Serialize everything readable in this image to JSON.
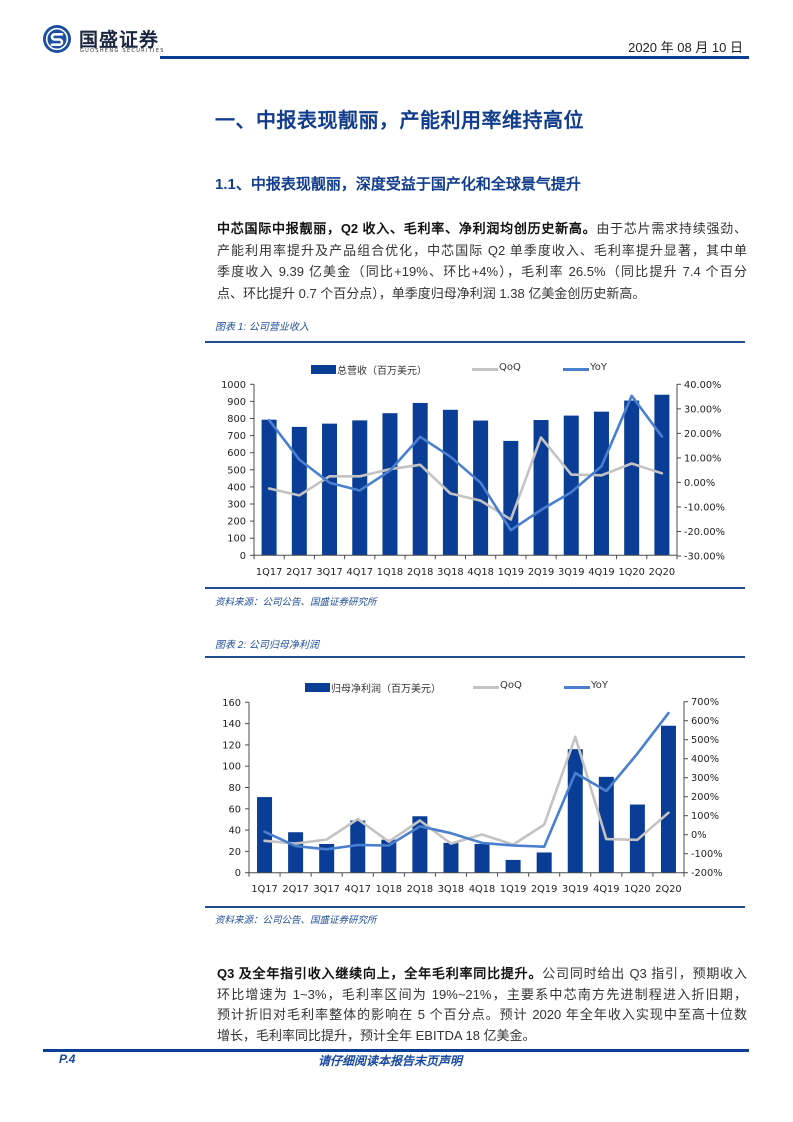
{
  "header": {
    "logo_cn": "国盛证券",
    "logo_en": "GUOSHENG SECURITIES",
    "date": "2020 年 08 月 10 日",
    "brand_color": "#0b3f96"
  },
  "section": {
    "h1": "一、中报表现靓丽，产能利用率维持高位",
    "h2": "1.1、中报表现靓丽，深度受益于国产化和全球景气提升"
  },
  "para1": {
    "lead": "中芯国际中报靓丽，Q2 收入、毛利率、净利润均创历史新高。",
    "lines": [
      "由于芯片需求持续强劲、",
      "产能利用率提升及产品组合优化，中芯国际 Q2 单季度收入、毛利率提升显著，其中单",
      "季度收入 9.39 亿美金（同比+19%、环比+4%），毛利率 26.5%（同比提升 7.4 个百分",
      "点、环比提升 0.7 个百分点），单季度归母净利润 1.38 亿美金创历史新高。"
    ]
  },
  "figure1": {
    "title": "图表 1: 公司营业收入",
    "source": "资料来源：公司公告、国盛证券研究所"
  },
  "figure2": {
    "title": "图表 2: 公司归母净利润",
    "source": "资料来源：公司公告、国盛证券研究所"
  },
  "para2": {
    "lead": "Q3 及全年指引收入继续向上，全年毛利率同比提升。",
    "lines": [
      "公司同时给出 Q3 指引，预期收入",
      "环比增速为 1~3%，毛利率区间为 19%~21%，主要系中芯南方先进制程进入折旧期，",
      "预计折旧对毛利率整体的影响在 5 个百分点。预计 2020 年全年收入实现中至高十位数",
      "增长，毛利率同比提升，预计全年 EBITDA 18 亿美金。"
    ]
  },
  "footer": {
    "page": "P.4",
    "note": "请仔细阅读本报告末页声明"
  },
  "chart_data": [
    {
      "type": "bar+line",
      "title": "图表 1: 公司营业收入",
      "categories": [
        "1Q17",
        "2Q17",
        "3Q17",
        "4Q17",
        "1Q18",
        "2Q18",
        "3Q18",
        "4Q18",
        "1Q19",
        "2Q19",
        "3Q19",
        "4Q19",
        "1Q20",
        "2Q20"
      ],
      "series": [
        {
          "key": "revenue",
          "name": "总营收（百万美元）",
          "axis": "left",
          "type": "bar",
          "color": "#0a3d96",
          "values": [
            793,
            751,
            770,
            789,
            831,
            891,
            851,
            788,
            669,
            791,
            817,
            840,
            905,
            939
          ]
        },
        {
          "key": "qoq",
          "name": "QoQ",
          "axis": "right",
          "type": "line",
          "color": "#c3c3c3",
          "values": [
            -2.5,
            -5.3,
            2.5,
            2.5,
            5.4,
            7.2,
            -4.5,
            -7.4,
            -15.1,
            18.3,
            3.2,
            2.9,
            7.7,
            3.7
          ]
        },
        {
          "key": "yoy",
          "name": "YoY",
          "axis": "right",
          "type": "line",
          "color": "#4a7fcf",
          "values": [
            25.4,
            9.3,
            -0.1,
            -3.3,
            4.8,
            18.6,
            10.5,
            -0.1,
            -19.5,
            -11.2,
            -4.0,
            6.6,
            35.3,
            18.7
          ]
        }
      ],
      "ylim": [
        0,
        1000
      ],
      "yticks": [
        0,
        100,
        200,
        300,
        400,
        500,
        600,
        700,
        800,
        900,
        1000
      ],
      "y2lim": [
        -30,
        40
      ],
      "y2ticks": [
        -30,
        -20,
        -10,
        0,
        10,
        20,
        30,
        40
      ],
      "y2tick_labels": [
        "-30.00%",
        "-20.00%",
        "-10.00%",
        "0.00%",
        "10.00%",
        "20.00%",
        "30.00%",
        "40.00%"
      ],
      "xlabel": "",
      "ylabel": "",
      "legend_position": "top",
      "grid": false
    },
    {
      "type": "bar+line",
      "title": "图表 2: 公司归母净利润",
      "categories": [
        "1Q17",
        "2Q17",
        "3Q17",
        "4Q17",
        "1Q18",
        "2Q18",
        "3Q18",
        "4Q18",
        "1Q19",
        "2Q19",
        "3Q19",
        "4Q19",
        "1Q20",
        "2Q20"
      ],
      "series": [
        {
          "key": "net_profit",
          "name": "归母净利润（百万美元）",
          "axis": "left",
          "type": "bar",
          "color": "#0a3d96",
          "values": [
            71,
            38,
            27,
            49,
            31,
            53,
            28,
            27,
            12,
            19,
            116,
            90,
            64,
            138
          ]
        },
        {
          "key": "qoq",
          "name": "QoQ",
          "axis": "right",
          "type": "line",
          "color": "#c3c3c3",
          "values": [
            -32,
            -47,
            -25,
            82,
            -37,
            75,
            -47,
            1,
            -52,
            53,
            515,
            -23,
            -27,
            116
          ]
        },
        {
          "key": "yoy",
          "name": "YoY",
          "axis": "right",
          "type": "line",
          "color": "#4a7fcf",
          "values": [
            16,
            -60,
            -77,
            -54,
            -57,
            44,
            8,
            -43,
            -57,
            -63,
            325,
            230,
            427,
            640
          ]
        }
      ],
      "ylim": [
        0,
        160
      ],
      "yticks": [
        0,
        20,
        40,
        60,
        80,
        100,
        120,
        140,
        160
      ],
      "y2lim": [
        -200,
        700
      ],
      "y2ticks": [
        -200,
        -100,
        0,
        100,
        200,
        300,
        400,
        500,
        600,
        700
      ],
      "y2tick_labels": [
        "-200%",
        "-100%",
        "0%",
        "100%",
        "200%",
        "300%",
        "400%",
        "500%",
        "600%",
        "700%"
      ],
      "xlabel": "",
      "ylabel": "",
      "legend_position": "top",
      "grid": false
    }
  ]
}
